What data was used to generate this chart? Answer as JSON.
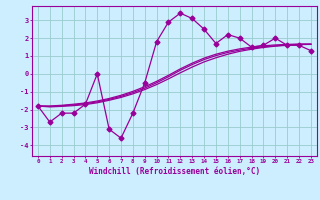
{
  "bg_color": "#cceeff",
  "grid_color": "#99cccc",
  "line_color": "#990099",
  "xlabel": "Windchill (Refroidissement éolien,°C)",
  "xlim": [
    -0.5,
    23.5
  ],
  "ylim": [
    -4.6,
    3.8
  ],
  "yticks": [
    -4,
    -3,
    -2,
    -1,
    0,
    1,
    2,
    3
  ],
  "xticks": [
    0,
    1,
    2,
    3,
    4,
    5,
    6,
    7,
    8,
    9,
    10,
    11,
    12,
    13,
    14,
    15,
    16,
    17,
    18,
    19,
    20,
    21,
    22,
    23
  ],
  "series1_x": [
    0,
    1,
    2,
    3,
    4,
    5,
    6,
    7,
    8,
    9,
    10,
    11,
    12,
    13,
    14,
    15,
    16,
    17,
    18,
    19,
    20,
    21,
    22,
    23
  ],
  "series1_y": [
    -1.8,
    -2.7,
    -2.2,
    -2.2,
    -1.7,
    0.0,
    -3.1,
    -3.6,
    -2.2,
    -0.5,
    1.8,
    2.9,
    3.4,
    3.1,
    2.5,
    1.7,
    2.2,
    2.0,
    1.5,
    1.6,
    2.0,
    1.6,
    1.6,
    1.3
  ],
  "series2_x": [
    0,
    1,
    2,
    3,
    4,
    5,
    6,
    7,
    8,
    9,
    10,
    11,
    12,
    13,
    14,
    15,
    16,
    17,
    18,
    19,
    20,
    21,
    22,
    23
  ],
  "series2_y": [
    -1.8,
    -1.85,
    -1.82,
    -1.78,
    -1.72,
    -1.62,
    -1.48,
    -1.32,
    -1.12,
    -0.88,
    -0.6,
    -0.28,
    0.06,
    0.38,
    0.67,
    0.9,
    1.1,
    1.26,
    1.38,
    1.48,
    1.55,
    1.6,
    1.64,
    1.65
  ],
  "series3_x": [
    0,
    1,
    2,
    3,
    4,
    5,
    6,
    7,
    8,
    9,
    10,
    11,
    12,
    13,
    14,
    15,
    16,
    17,
    18,
    19,
    20,
    21,
    22,
    23
  ],
  "series3_y": [
    -1.8,
    -1.8,
    -1.76,
    -1.7,
    -1.63,
    -1.52,
    -1.38,
    -1.2,
    -0.98,
    -0.72,
    -0.42,
    -0.08,
    0.28,
    0.6,
    0.88,
    1.1,
    1.27,
    1.4,
    1.5,
    1.57,
    1.62,
    1.65,
    1.67,
    1.67
  ],
  "series4_x": [
    0,
    1,
    2,
    3,
    4,
    5,
    6,
    7,
    8,
    9,
    10,
    11,
    12,
    13,
    14,
    15,
    16,
    17,
    18,
    19,
    20,
    21,
    22,
    23
  ],
  "series4_y": [
    -1.8,
    -1.82,
    -1.79,
    -1.74,
    -1.67,
    -1.57,
    -1.43,
    -1.26,
    -1.05,
    -0.8,
    -0.5,
    -0.16,
    0.2,
    0.52,
    0.8,
    1.02,
    1.2,
    1.33,
    1.44,
    1.51,
    1.57,
    1.62,
    1.65,
    1.66
  ]
}
